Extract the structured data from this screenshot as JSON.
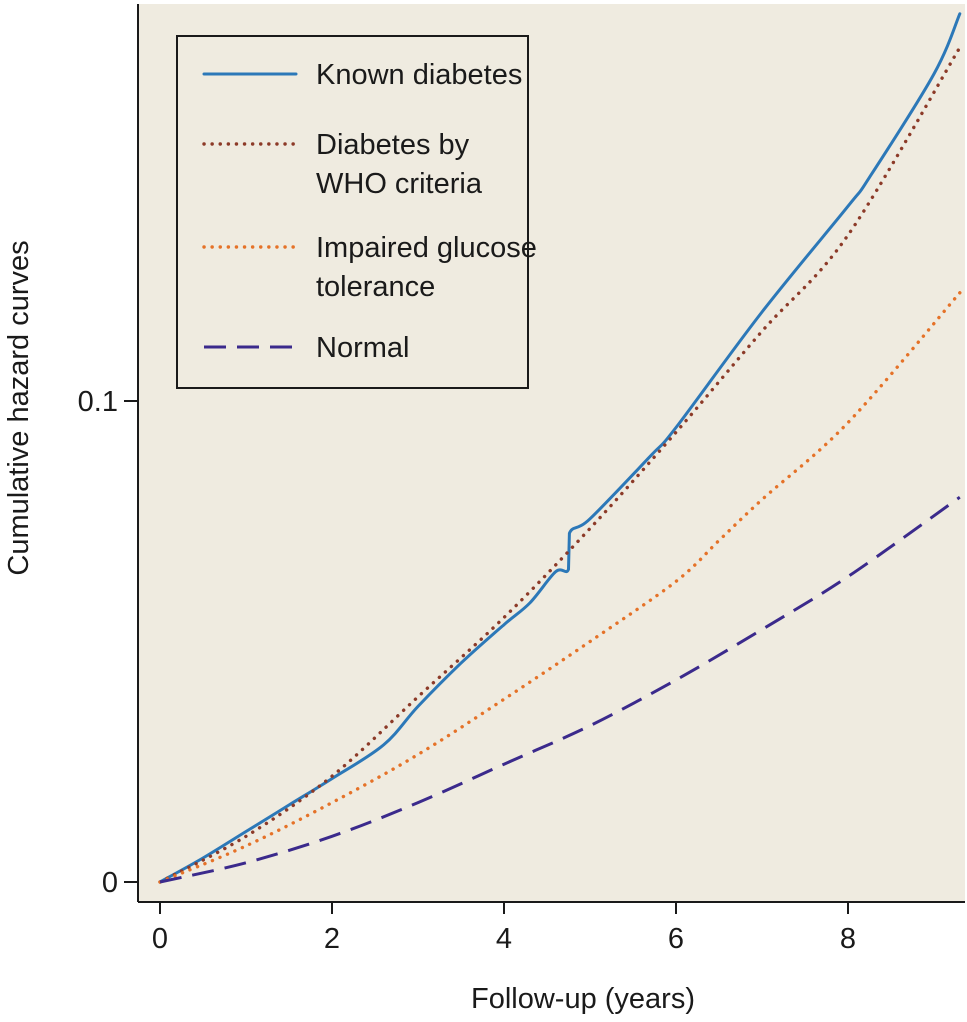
{
  "chart_data": {
    "type": "line",
    "title": "",
    "xlabel": "Follow-up (years)",
    "ylabel": "Cumulative hazard curves",
    "xlim": [
      0,
      9.3
    ],
    "ylim": [
      0,
      0.182
    ],
    "xticks": [
      0,
      2,
      4,
      6,
      8
    ],
    "xtick_labels": [
      "0",
      "2",
      "4",
      "6",
      "8"
    ],
    "yticks": [
      0,
      0.1
    ],
    "ytick_labels": [
      "0",
      "0.1"
    ],
    "grid": false,
    "legend_position": "top-left",
    "background": "#efebe0",
    "series": [
      {
        "name": "Known diabetes",
        "color": "#2c78b8",
        "style": "solid",
        "x": [
          0,
          0.5,
          1.0,
          1.5,
          2.0,
          2.6,
          3.0,
          3.5,
          4.0,
          4.3,
          4.6,
          4.75,
          4.76,
          5.0,
          5.7,
          6.0,
          7.0,
          8.0,
          8.25,
          9.0,
          9.3
        ],
        "y": [
          0,
          0.005,
          0.0105,
          0.016,
          0.0215,
          0.0285,
          0.0365,
          0.0455,
          0.0535,
          0.058,
          0.0645,
          0.065,
          0.0725,
          0.0755,
          0.0885,
          0.0945,
          0.1185,
          0.1405,
          0.1465,
          0.168,
          0.1805
        ]
      },
      {
        "name": "Diabetes by WHO criteria",
        "color": "#8c3a28",
        "style": "dotted",
        "x": [
          0,
          1.0,
          2.0,
          3.0,
          4.0,
          5.0,
          6.0,
          7.0,
          8.0,
          9.3
        ],
        "y": [
          0,
          0.0095,
          0.022,
          0.0385,
          0.055,
          0.0735,
          0.0935,
          0.1145,
          0.1345,
          0.1735
        ]
      },
      {
        "name": "Impaired glucose tolerance",
        "color": "#e57228",
        "style": "dotted",
        "x": [
          0,
          1.0,
          2.0,
          3.0,
          4.0,
          5.0,
          6.0,
          6.5,
          7.0,
          8.0,
          9.3
        ],
        "y": [
          0,
          0.0075,
          0.0165,
          0.0265,
          0.038,
          0.05,
          0.0625,
          0.071,
          0.0795,
          0.0955,
          0.1225
        ]
      },
      {
        "name": "Normal",
        "color": "#3b2a8c",
        "style": "dashed",
        "x": [
          0,
          1.0,
          2.0,
          3.0,
          4.0,
          5.0,
          6.0,
          7.0,
          8.0,
          9.3
        ],
        "y": [
          0,
          0.004,
          0.0095,
          0.0165,
          0.0245,
          0.0325,
          0.042,
          0.0525,
          0.0635,
          0.08
        ]
      }
    ]
  },
  "legend": {
    "items": [
      {
        "lines": [
          "Known diabetes"
        ],
        "color": "#2c78b8",
        "style": "solid"
      },
      {
        "lines": [
          "Diabetes by",
          "WHO criteria"
        ],
        "color": "#8c3a28",
        "style": "dotted"
      },
      {
        "lines": [
          "Impaired glucose",
          "tolerance"
        ],
        "color": "#e57228",
        "style": "dotted"
      },
      {
        "lines": [
          "Normal"
        ],
        "color": "#3b2a8c",
        "style": "dashed"
      }
    ]
  }
}
